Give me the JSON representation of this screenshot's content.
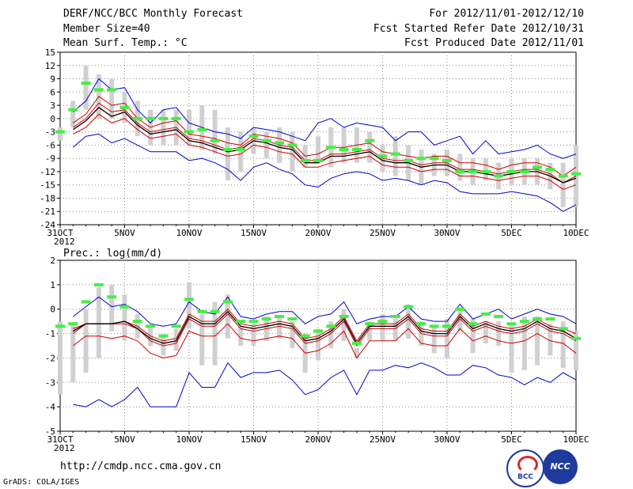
{
  "header": {
    "title": "DERF/NCC/BCC Monthly Forecast",
    "member_size": "Member Size=40",
    "variable": "Mean Surf. Temp.: °C",
    "period": "For 2012/11/01-2012/12/10",
    "started": "Fcst Started Refer Date 2012/10/31",
    "produced": "Fcst Produced Date 2012/11/01"
  },
  "footer": {
    "url": "http://cmdp.ncc.cma.gov.cn",
    "credit": "GrADS: COLA/IGES",
    "logo_left": "BCC",
    "logo_right": "NCC"
  },
  "colors": {
    "box": "#d0d0d0",
    "median": "#000000",
    "mean": "#cc0000",
    "spread": "#0000cc",
    "clim": "#44ee44",
    "grid": "#888888"
  },
  "chart_data": [
    {
      "type": "line",
      "title": "Mean Surf. Temp.: °C",
      "x_labels": [
        "31OCT",
        "5NOV",
        "10NOV",
        "15NOV",
        "20NOV",
        "25NOV",
        "30NOV",
        "5DEC",
        "10DEC"
      ],
      "x_label_offsets": [
        0,
        5,
        10,
        15,
        20,
        25,
        30,
        35,
        40
      ],
      "year_label": "2012",
      "xlim": [
        0,
        40
      ],
      "ylim": [
        -24,
        15
      ],
      "yticks": [
        15,
        12,
        9,
        6,
        3,
        0,
        -3,
        -6,
        -9,
        -12,
        -15,
        -18,
        -21,
        -24
      ],
      "series": [
        {
          "name": "max",
          "values": [
            null,
            1.5,
            4,
            9,
            6.5,
            7,
            2,
            -1,
            2,
            2.5,
            -1,
            -2,
            -3,
            -3.5,
            -4.5,
            -2,
            -2.5,
            -3,
            -4,
            -5,
            -1,
            0,
            -2,
            -1,
            -1.5,
            -2,
            -5,
            -3,
            -3,
            -6,
            -5,
            -4,
            -8,
            -5,
            -8,
            -7.5,
            -7,
            -6,
            -8,
            -9,
            -8
          ]
        },
        {
          "name": "upper",
          "values": [
            null,
            -1,
            1,
            5,
            3,
            3.5,
            0,
            -2,
            -1,
            -0.5,
            -3.5,
            -4,
            -4.5,
            -5.5,
            -6,
            -3.5,
            -4,
            -4.5,
            -5.5,
            -8.5,
            -8,
            -6.5,
            -6.5,
            -6,
            -5.5,
            -7.5,
            -8,
            -8.5,
            -9,
            -8.5,
            -8.5,
            -10,
            -10,
            -10.5,
            -11.5,
            -10.5,
            -10,
            -10,
            -11,
            -13,
            -11
          ]
        },
        {
          "name": "mean",
          "values": [
            null,
            -2,
            0,
            3.5,
            1.5,
            2,
            -1,
            -3,
            -2.5,
            -2,
            -4.5,
            -5,
            -6,
            -7,
            -6.5,
            -4.5,
            -5,
            -6,
            -6.5,
            -9.5,
            -9.5,
            -8,
            -8,
            -7.5,
            -7,
            -9,
            -9.5,
            -9.5,
            -10.5,
            -10,
            -10,
            -11.5,
            -11.5,
            -12,
            -12.5,
            -12,
            -11.5,
            -11.5,
            -12.5,
            -14.5,
            -13
          ]
        },
        {
          "name": "median",
          "values": [
            null,
            -2.5,
            -0.5,
            2.5,
            0.5,
            1.5,
            -1.5,
            -3.5,
            -3,
            -2.5,
            -5,
            -5.5,
            -6.5,
            -7.5,
            -7,
            -5,
            -5.5,
            -6.5,
            -7,
            -10,
            -10,
            -8.5,
            -8.5,
            -8,
            -7.5,
            -9.5,
            -10,
            -10,
            -11,
            -10.5,
            -10.5,
            -12,
            -12,
            -12.5,
            -13,
            -12.5,
            -12,
            -12,
            -13,
            -14.5,
            -13.5
          ]
        },
        {
          "name": "lower",
          "values": [
            null,
            -3.5,
            -2,
            1,
            -1,
            0,
            -2.5,
            -4.5,
            -4,
            -3.5,
            -6,
            -6.5,
            -7.5,
            -8.5,
            -8,
            -6,
            -6.5,
            -7.5,
            -8,
            -11,
            -11,
            -10,
            -9.5,
            -9,
            -8.5,
            -10.5,
            -11,
            -11,
            -12,
            -11.5,
            -11.5,
            -13,
            -13,
            -13.5,
            -14,
            -13.5,
            -13,
            -13,
            -14,
            -16,
            -15
          ]
        },
        {
          "name": "min",
          "values": [
            null,
            -6.5,
            -4,
            -3.5,
            -5.5,
            -4.5,
            -6,
            -7.5,
            -7.5,
            -7.5,
            -9.5,
            -9,
            -10,
            -11.5,
            -14,
            -11,
            -10,
            -11.5,
            -12.5,
            -15,
            -15.5,
            -13.5,
            -12.5,
            -12,
            -12.5,
            -14,
            -13.5,
            -14,
            -15,
            -14,
            -14.5,
            -16.5,
            -17,
            -17,
            -17,
            -16.5,
            -17,
            -17.5,
            -19,
            -21,
            -19.5
          ]
        },
        {
          "name": "box_high",
          "values": [
            -2,
            4,
            12,
            10,
            9,
            6,
            4,
            2,
            2,
            2,
            2,
            3,
            2,
            -2,
            -3,
            -2,
            -3,
            -2,
            -3,
            -6,
            -4,
            -2,
            -2,
            -2,
            -3,
            -6,
            -4,
            -6,
            -7,
            -8,
            -7,
            -8,
            -9,
            -9,
            -10,
            -9,
            -9,
            -9,
            -10,
            -10,
            -6
          ]
        },
        {
          "name": "box_low",
          "values": [
            -5,
            -2,
            2,
            0,
            0,
            -1,
            -4,
            -6,
            -6,
            -6,
            -6,
            -7,
            -8,
            -14,
            -12,
            -8,
            -9,
            -10,
            -12,
            -11,
            -10,
            -11,
            -10,
            -10,
            -10,
            -12,
            -13,
            -14,
            -15,
            -13,
            -13,
            -14,
            -15,
            -14,
            -16,
            -15,
            -15,
            -15,
            -16,
            -20,
            -20
          ]
        },
        {
          "name": "climatology",
          "values": [
            -3,
            2,
            8,
            6.5,
            6.5,
            2.5,
            0,
            0,
            0,
            0,
            -3,
            -2.5,
            -5,
            -7,
            -7,
            -4,
            -5,
            -5.5,
            -6,
            -9.5,
            -9.5,
            -6.5,
            -7,
            -7,
            -5,
            -8.5,
            -8,
            -9.5,
            -9,
            -9,
            -9.5,
            -12,
            -12,
            -12,
            -13,
            -12,
            -12,
            -11,
            -11.5,
            -13,
            -12.5
          ]
        }
      ]
    },
    {
      "type": "line",
      "title": "Prec.: log(mm/d)",
      "x_labels": [
        "31OCT",
        "5NOV",
        "10NOV",
        "15NOV",
        "20NOV",
        "25NOV",
        "30NOV",
        "5DEC",
        "10DEC"
      ],
      "x_label_offsets": [
        0,
        5,
        10,
        15,
        20,
        25,
        30,
        35,
        40
      ],
      "year_label": "2012",
      "xlim": [
        0,
        40
      ],
      "ylim": [
        -5,
        2
      ],
      "yticks": [
        2,
        1,
        0,
        -1,
        -2,
        -3,
        -4,
        -5
      ],
      "series": [
        {
          "name": "max",
          "values": [
            null,
            -0.3,
            0.1,
            0.5,
            0.1,
            0.2,
            -0.1,
            -0.6,
            -0.7,
            -0.6,
            0.3,
            -0.1,
            -0.2,
            0.5,
            -0.3,
            -0.4,
            -0.2,
            -0.1,
            -0.1,
            -0.6,
            -0.3,
            -0.2,
            0.3,
            -0.6,
            -0.4,
            -0.3,
            -0.3,
            0.1,
            -0.4,
            -0.5,
            -0.5,
            0.2,
            -0.4,
            -0.2,
            0,
            -0.4,
            -0.2,
            0,
            -0.2,
            -0.3,
            -0.6
          ]
        },
        {
          "name": "upper",
          "values": [
            null,
            -0.8,
            -0.6,
            -0.6,
            -0.6,
            -0.5,
            -0.7,
            -1.1,
            -1.3,
            -1.2,
            -0.2,
            -0.5,
            -0.5,
            0,
            -0.6,
            -0.7,
            -0.6,
            -0.5,
            -0.6,
            -1.2,
            -1.1,
            -0.8,
            -0.3,
            -1.3,
            -0.6,
            -0.6,
            -0.6,
            -0.2,
            -0.8,
            -0.9,
            -0.9,
            -0.2,
            -0.7,
            -0.5,
            -0.7,
            -0.8,
            -0.7,
            -0.4,
            -0.7,
            -0.8,
            -1.0
          ]
        },
        {
          "name": "mean",
          "values": [
            null,
            -1.0,
            -0.6,
            -0.6,
            -0.6,
            -0.6,
            -0.8,
            -1.3,
            -1.5,
            -1.4,
            -0.4,
            -0.7,
            -0.7,
            -0.2,
            -0.8,
            -0.9,
            -0.8,
            -0.7,
            -0.8,
            -1.4,
            -1.3,
            -1.0,
            -0.5,
            -1.5,
            -0.8,
            -0.8,
            -0.8,
            -0.4,
            -1.0,
            -1.1,
            -1.1,
            -0.4,
            -0.9,
            -0.7,
            -0.9,
            -1.0,
            -0.9,
            -0.6,
            -0.9,
            -1.0,
            -1.3
          ]
        },
        {
          "name": "median",
          "values": [
            null,
            -0.9,
            -0.6,
            -0.6,
            -0.6,
            -0.5,
            -0.8,
            -1.2,
            -1.4,
            -1.3,
            -0.3,
            -0.6,
            -0.6,
            -0.1,
            -0.7,
            -0.8,
            -0.7,
            -0.6,
            -0.7,
            -1.3,
            -1.2,
            -0.9,
            -0.4,
            -1.4,
            -0.7,
            -0.7,
            -0.7,
            -0.3,
            -0.9,
            -1.0,
            -1.0,
            -0.3,
            -0.8,
            -0.6,
            -0.8,
            -0.9,
            -0.8,
            -0.5,
            -0.8,
            -0.9,
            -1.2
          ]
        },
        {
          "name": "lower",
          "values": [
            null,
            -1.5,
            -1.1,
            -1.1,
            -1.2,
            -1.1,
            -1.3,
            -1.8,
            -2.0,
            -1.9,
            -0.9,
            -1.1,
            -1.1,
            -0.6,
            -1.2,
            -1.3,
            -1.2,
            -1.1,
            -1.2,
            -1.8,
            -1.7,
            -1.4,
            -0.9,
            -2.0,
            -1.3,
            -1.3,
            -1.3,
            -0.8,
            -1.4,
            -1.5,
            -1.5,
            -0.8,
            -1.3,
            -1.1,
            -1.3,
            -1.4,
            -1.3,
            -1.0,
            -1.3,
            -1.4,
            -1.8
          ]
        },
        {
          "name": "min",
          "values": [
            null,
            -3.9,
            -4.0,
            -3.7,
            -4.0,
            -3.7,
            -3.2,
            -4.0,
            -4.0,
            -4.0,
            -2.6,
            -3.2,
            -3.2,
            -2.2,
            -2.8,
            -2.6,
            -2.6,
            -2.5,
            -2.9,
            -3.5,
            -3.3,
            -2.8,
            -2.5,
            -3.5,
            -2.5,
            -2.5,
            -2.3,
            -2.4,
            -2.2,
            -2.4,
            -2.7,
            -2.7,
            -2.3,
            -2.4,
            -2.7,
            -2.8,
            -3.1,
            -2.8,
            -3.0,
            -2.6,
            -2.9
          ]
        },
        {
          "name": "box_high",
          "values": [
            -0.5,
            -0.6,
            0,
            0.9,
            1.0,
            0.6,
            -0.2,
            -0.7,
            -1.1,
            -0.8,
            1.1,
            -0.2,
            0.3,
            0.6,
            -0.7,
            -0.6,
            -0.3,
            -0.3,
            -0.5,
            -1.0,
            -0.8,
            -0.5,
            0,
            -1.6,
            -0.5,
            -0.2,
            -0.4,
            0.2,
            -0.5,
            -0.7,
            -0.4,
            0,
            -0.4,
            -0.5,
            -0.5,
            -0.6,
            -0.3,
            -0.3,
            -0.6,
            -0.5,
            -0.9
          ]
        },
        {
          "name": "box_low",
          "values": [
            -3.5,
            -3.0,
            -2.6,
            -2.0,
            -0.9,
            -1.3,
            -1.2,
            -1.5,
            -1.9,
            -1.7,
            -0.8,
            -2.3,
            -2.3,
            -1.2,
            -1.5,
            -1.5,
            -1.3,
            -1.2,
            -1.6,
            -2.6,
            -2.1,
            -1.6,
            -1.3,
            -2.0,
            -1.3,
            -1.3,
            -1.3,
            -1.2,
            -1.5,
            -1.8,
            -2.0,
            -0.9,
            -1.8,
            -1.4,
            -1.5,
            -2.6,
            -2.5,
            -2.3,
            -1.9,
            -2.4,
            -2.5
          ]
        },
        {
          "name": "climatology",
          "values": [
            -0.7,
            -0.6,
            0.3,
            1.0,
            0.5,
            0.1,
            -0.5,
            -0.7,
            -1.1,
            -0.7,
            0.4,
            -0.1,
            -0.1,
            0.3,
            -0.5,
            -0.5,
            -0.4,
            -0.3,
            -0.4,
            -1.1,
            -0.9,
            -0.7,
            -0.3,
            -1.4,
            -0.6,
            -0.5,
            -0.3,
            0.1,
            -0.6,
            -0.7,
            -0.7,
            0,
            -0.6,
            -0.2,
            -0.3,
            -0.6,
            -0.5,
            -0.4,
            -0.4,
            -0.8,
            -1.2
          ]
        }
      ]
    }
  ]
}
